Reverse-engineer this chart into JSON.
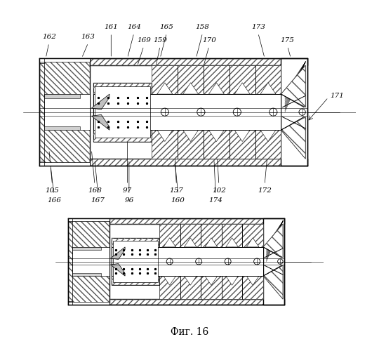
{
  "bg_color": "#ffffff",
  "line_color": "#000000",
  "fig_width": 5.4,
  "fig_height": 5.0,
  "dpi": 100,
  "caption": "Фиг. 16"
}
